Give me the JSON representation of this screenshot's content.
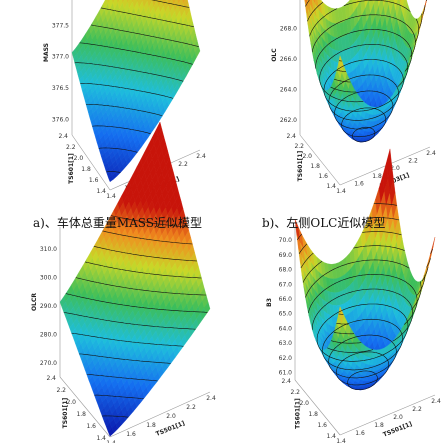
{
  "captions": {
    "a": "a)、车体总重量MASS近似模型",
    "b": "b)、左侧OLC近似模型"
  },
  "chart_data": [
    {
      "type": "surface",
      "zlabel": "MASS",
      "xlabel": "TS501[1]",
      "ylabel": "TS601[1]",
      "zticks": [
        "376.0",
        "376.5",
        "377.0",
        "377.5",
        "378.0"
      ],
      "xticks": [
        "1.4",
        "1.6",
        "1.8",
        "2.0",
        "2.2",
        "2.4"
      ],
      "yticks": [
        "1.4",
        "1.6",
        "1.8",
        "2.0",
        "2.2",
        "2.4"
      ],
      "zlim": [
        376.0,
        378.3
      ],
      "minimum": {
        "x": 1.5,
        "y": 1.4
      }
    },
    {
      "type": "surface",
      "zlabel": "OLC",
      "xlabel": "TS503[1]",
      "ylabel": "TS601[1]",
      "zticks": [
        "262.0",
        "264.0",
        "266.0",
        "268.0",
        "270.0"
      ],
      "xticks": [
        "1.4",
        "1.6",
        "1.8",
        "2.0",
        "2.2",
        "2.4"
      ],
      "yticks": [
        "1.4",
        "1.6",
        "1.8",
        "2.0",
        "2.2",
        "2.4"
      ],
      "zlim": [
        262.0,
        270.5
      ],
      "minimum": {
        "x": 1.8,
        "y": 1.8
      }
    },
    {
      "type": "surface",
      "zlabel": "OLCR",
      "xlabel": "TS501[1]",
      "ylabel": "TS601[1]",
      "zticks": [
        "270.0",
        "280.0",
        "290.0",
        "300.0",
        "310.0"
      ],
      "xticks": [
        "1.4",
        "1.6",
        "1.8",
        "2.0",
        "2.2",
        "2.4"
      ],
      "yticks": [
        "1.4",
        "1.6",
        "1.8",
        "2.0",
        "2.2",
        "2.4"
      ],
      "zlim": [
        268.0,
        312.0
      ],
      "minimum": {
        "x": 1.5,
        "y": 1.7
      }
    },
    {
      "type": "surface",
      "zlabel": "B3",
      "xlabel": "TS501[1]",
      "ylabel": "TS601[1]",
      "zticks": [
        "61.0",
        "62.0",
        "63.0",
        "64.0",
        "65.0",
        "66.0",
        "67.0",
        "68.0",
        "69.0",
        "70.0"
      ],
      "xticks": [
        "1.4",
        "1.6",
        "1.8",
        "2.0",
        "2.2",
        "2.4"
      ],
      "yticks": [
        "1.4",
        "1.6",
        "1.8",
        "2.0",
        "2.2",
        "2.4"
      ],
      "zlim": [
        61.0,
        70.5
      ],
      "minimum": {
        "x": 1.8,
        "y": 1.8
      }
    }
  ]
}
